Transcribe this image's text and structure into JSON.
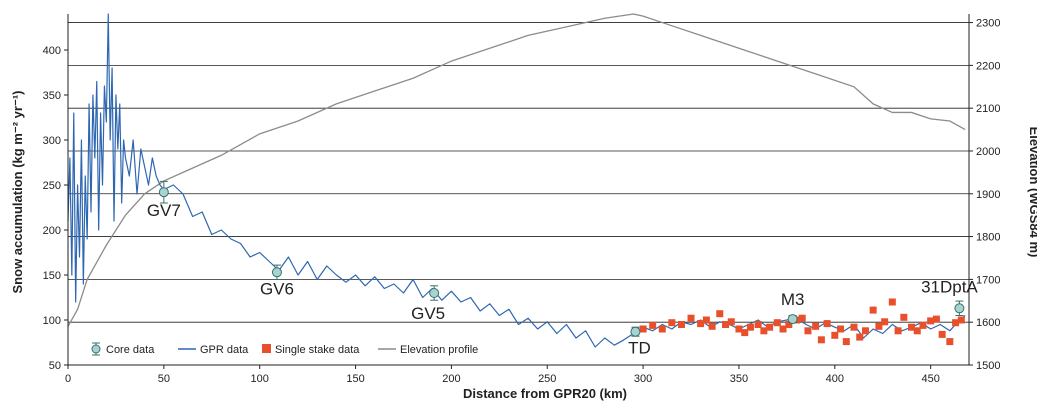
{
  "chart_data": {
    "type": "line",
    "xlabel": "Distance from GPR20 (km)",
    "ylabel_left": "Snow accumulation (kg m⁻² yr⁻¹)",
    "ylabel_right": "Elevation (WGS84 m)",
    "xlim": [
      0,
      470
    ],
    "ylim_left": [
      50,
      440
    ],
    "ylim_right": [
      1500,
      2320
    ],
    "x_ticks": [
      0,
      50,
      100,
      150,
      200,
      250,
      300,
      350,
      400,
      450
    ],
    "y_ticks_left": [
      50,
      100,
      150,
      200,
      250,
      300,
      350,
      400
    ],
    "y_ticks_right": [
      1500,
      1600,
      1700,
      1800,
      1900,
      2000,
      2100,
      2200,
      2300
    ],
    "grid": "horizontal",
    "legend_position": "bottom-left",
    "legend": [
      "Core data",
      "GPR data",
      "Single stake data",
      "Elevation profile"
    ],
    "colors": {
      "gpr": "#2e67b1",
      "stake": "#e8502c",
      "elevation": "#8c8c8c",
      "core_fill": "#a8d3cf",
      "core_edge": "#3a6f70",
      "grid": "#222222"
    },
    "core_sites": [
      {
        "label": "GV7",
        "x": 50,
        "y": 242,
        "err": 12
      },
      {
        "label": "GV6",
        "x": 109,
        "y": 153,
        "err": 8
      },
      {
        "label": "GV5",
        "x": 191,
        "y": 130,
        "err": 8
      },
      {
        "label": "TD",
        "x": 296,
        "y": 87,
        "err": 5
      },
      {
        "label": "M3",
        "x": 378,
        "y": 101,
        "err": 4
      },
      {
        "label": "31DptA",
        "x": 465,
        "y": 113,
        "err": 8
      }
    ],
    "elevation_profile": {
      "x": [
        0,
        5,
        10,
        20,
        30,
        40,
        50,
        60,
        80,
        100,
        120,
        140,
        160,
        180,
        200,
        220,
        240,
        260,
        280,
        295,
        300,
        310,
        330,
        350,
        370,
        390,
        410,
        420,
        430,
        440,
        450,
        460,
        468
      ],
      "y": [
        1590,
        1630,
        1700,
        1780,
        1850,
        1900,
        1930,
        1950,
        1990,
        2040,
        2070,
        2110,
        2140,
        2170,
        2210,
        2240,
        2270,
        2290,
        2310,
        2320,
        2315,
        2300,
        2270,
        2240,
        2210,
        2180,
        2150,
        2110,
        2090,
        2090,
        2075,
        2070,
        2050
      ]
    },
    "gpr_data": {
      "x": [
        0,
        1,
        2,
        3,
        4,
        5,
        6,
        7,
        8,
        9,
        10,
        11,
        12,
        13,
        14,
        15,
        16,
        17,
        18,
        19,
        20,
        21,
        22,
        23,
        24,
        25,
        26,
        27,
        28,
        29,
        30,
        32,
        34,
        36,
        38,
        40,
        42,
        44,
        46,
        48,
        50,
        55,
        60,
        65,
        70,
        75,
        80,
        85,
        90,
        95,
        100,
        105,
        110,
        115,
        120,
        125,
        130,
        135,
        140,
        145,
        150,
        155,
        160,
        165,
        170,
        175,
        180,
        185,
        190,
        195,
        200,
        205,
        210,
        215,
        220,
        225,
        230,
        235,
        240,
        245,
        250,
        255,
        260,
        265,
        270,
        275,
        280,
        285,
        290,
        295,
        300,
        305,
        310,
        315,
        320,
        325,
        330,
        335,
        340,
        345,
        350,
        355,
        360,
        365,
        370,
        375,
        380,
        385,
        390,
        395,
        400,
        405,
        410,
        415,
        420,
        425,
        430,
        435,
        440,
        445,
        450,
        455,
        460,
        465,
        468
      ],
      "y": [
        210,
        280,
        150,
        330,
        120,
        250,
        170,
        300,
        140,
        260,
        190,
        340,
        220,
        350,
        280,
        365,
        200,
        330,
        250,
        360,
        320,
        440,
        300,
        380,
        210,
        350,
        290,
        340,
        230,
        300,
        280,
        260,
        300,
        240,
        290,
        270,
        250,
        280,
        260,
        250,
        245,
        250,
        240,
        215,
        220,
        195,
        200,
        190,
        185,
        170,
        175,
        165,
        155,
        170,
        150,
        165,
        145,
        160,
        150,
        142,
        150,
        138,
        148,
        135,
        140,
        130,
        145,
        125,
        135,
        122,
        132,
        120,
        125,
        110,
        118,
        105,
        112,
        95,
        102,
        90,
        98,
        85,
        95,
        80,
        88,
        70,
        80,
        72,
        78,
        85,
        92,
        88,
        95,
        90,
        98,
        95,
        100,
        92,
        98,
        95,
        90,
        95,
        100,
        92,
        98,
        100,
        102,
        95,
        90,
        97,
        92,
        88,
        95,
        80,
        90,
        85,
        95,
        88,
        92,
        97,
        90,
        95,
        88,
        100,
        105
      ]
    },
    "single_stake_data": {
      "x": [
        300,
        305,
        310,
        315,
        320,
        325,
        330,
        333,
        336,
        340,
        343,
        346,
        350,
        353,
        356,
        360,
        363,
        366,
        370,
        373,
        376,
        380,
        383,
        386,
        390,
        393,
        396,
        400,
        403,
        406,
        410,
        413,
        416,
        420,
        423,
        426,
        430,
        433,
        436,
        440,
        443,
        446,
        450,
        453,
        456,
        460,
        463,
        466
      ],
      "y": [
        90,
        94,
        90,
        97,
        95,
        102,
        96,
        100,
        93,
        107,
        95,
        98,
        90,
        86,
        92,
        95,
        88,
        92,
        97,
        90,
        95,
        100,
        102,
        88,
        93,
        78,
        96,
        83,
        90,
        76,
        92,
        81,
        88,
        111,
        93,
        98,
        120,
        88,
        103,
        92,
        88,
        94,
        99,
        101,
        84,
        76,
        97,
        100
      ]
    }
  }
}
